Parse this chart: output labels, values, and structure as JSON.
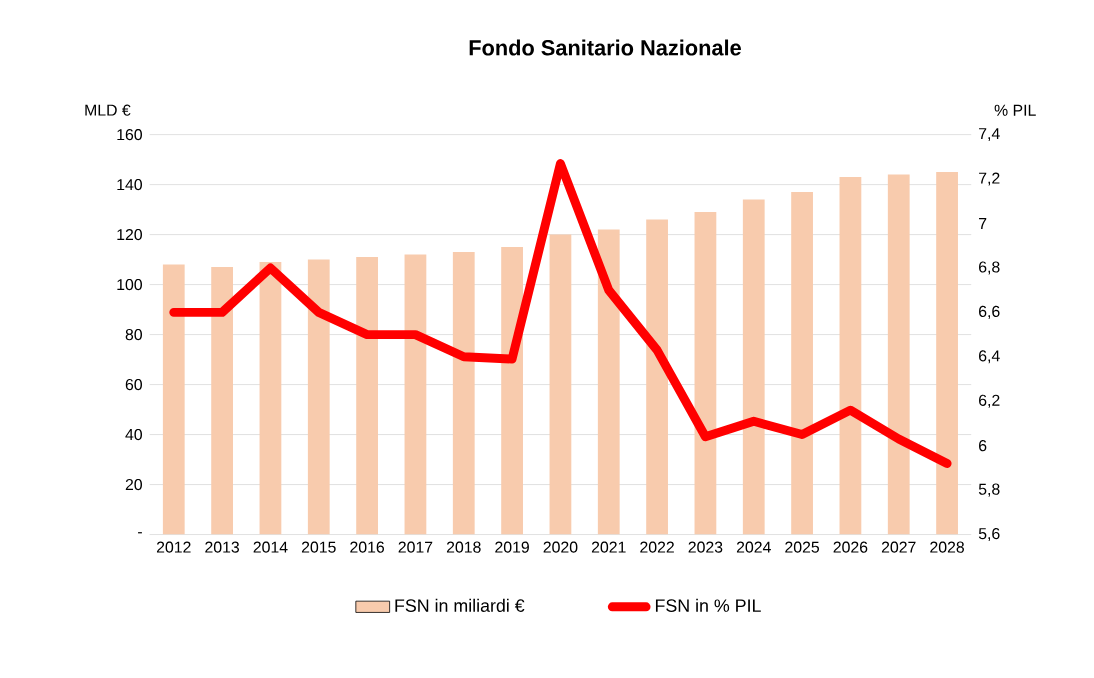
{
  "chart_data": {
    "type": "bar",
    "title": "Fondo Sanitario Nazionale",
    "ylabel": "MLD €",
    "y2label": "% PIL",
    "categories": [
      "2012",
      "2013",
      "2014",
      "2015",
      "2016",
      "2017",
      "2018",
      "2019",
      "2020",
      "2021",
      "2022",
      "2023",
      "2024",
      "2025",
      "2026",
      "2027",
      "2028"
    ],
    "series": [
      {
        "name": "FSN in miliardi €",
        "color": "#f8cbad",
        "values": [
          108,
          107,
          109,
          110,
          111,
          112,
          113,
          115,
          120,
          122,
          126,
          129,
          134,
          137,
          143,
          144,
          145
        ]
      },
      {
        "name": "FSN in % PIL",
        "type": "line",
        "axis": "y2",
        "color": "#ff0000",
        "values": [
          6.6,
          6.6,
          6.8,
          6.6,
          6.5,
          6.5,
          6.4,
          6.39,
          7.27,
          6.7,
          6.43,
          6.04,
          6.11,
          6.05,
          6.16,
          6.03,
          5.92
        ]
      }
    ],
    "ylim": [
      0,
      160
    ],
    "yticks": [
      {
        "value": 0,
        "label": "-"
      },
      20,
      40,
      60,
      80,
      100,
      120,
      140,
      160
    ],
    "y2lim": [
      5.6,
      7.4
    ],
    "y2ticks": [
      {
        "value": 5.6,
        "label": "5,6"
      },
      {
        "value": 5.8,
        "label": "5,8"
      },
      {
        "value": 6,
        "label": "6"
      },
      {
        "value": 6.2,
        "label": "6,2"
      },
      {
        "value": 6.4,
        "label": "6,4"
      },
      {
        "value": 6.6,
        "label": "6,6"
      },
      {
        "value": 6.8,
        "label": "6,8"
      },
      {
        "value": 7,
        "label": "7"
      },
      {
        "value": 7.2,
        "label": "7,2"
      },
      {
        "value": 7.4,
        "label": "7,4"
      }
    ],
    "grid": "y",
    "legend": "bottom"
  }
}
